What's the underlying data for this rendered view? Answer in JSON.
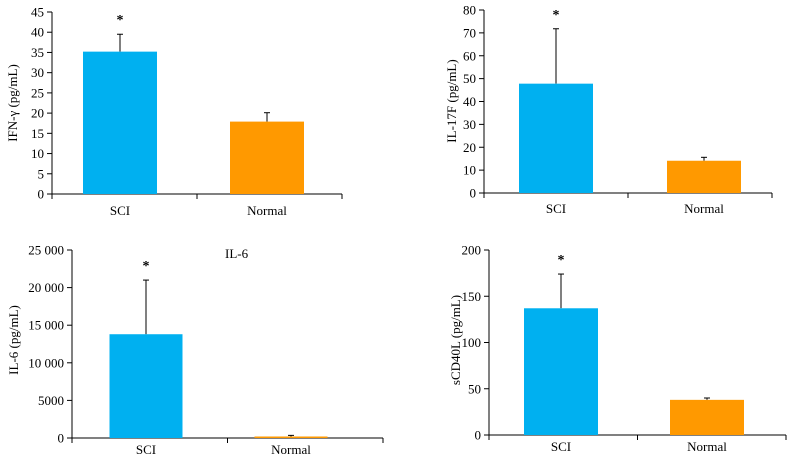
{
  "colors": {
    "sci": "#00b0f0",
    "normal": "#ff9900",
    "axis": "#000000"
  },
  "chart_data": [
    {
      "type": "bar",
      "title": "",
      "ylabel": "IFN-γ (pg/mL)",
      "categories": [
        "SCI",
        "Normal"
      ],
      "values": [
        35.2,
        17.9
      ],
      "errors": [
        4.3,
        2.2
      ],
      "annotations": [
        "*",
        ""
      ],
      "ylim": [
        0,
        45
      ],
      "ticks": [
        0,
        5,
        10,
        15,
        20,
        25,
        30,
        35,
        40,
        45
      ],
      "tick_labels": [
        "0",
        "5",
        "10",
        "15",
        "20",
        "25",
        "30",
        "35",
        "40",
        "45"
      ],
      "grid": false,
      "legend": "none"
    },
    {
      "type": "bar",
      "title": "",
      "ylabel": "IL-17F (pg/mL)",
      "categories": [
        "SCI",
        "Normal"
      ],
      "values": [
        47.8,
        14.1
      ],
      "errors": [
        24,
        1.5
      ],
      "annotations": [
        "*",
        ""
      ],
      "ylim": [
        0,
        80
      ],
      "ticks": [
        0,
        10,
        20,
        30,
        40,
        50,
        60,
        70,
        80
      ],
      "tick_labels": [
        "0",
        "10",
        "20",
        "30",
        "40",
        "50",
        "60",
        "70",
        "80"
      ],
      "grid": false,
      "legend": "none"
    },
    {
      "type": "bar",
      "title": "IL-6",
      "ylabel": "IL-6 (pg/mL)",
      "categories": [
        "SCI",
        "Normal"
      ],
      "values": [
        13800,
        200
      ],
      "errors": [
        7200,
        150
      ],
      "annotations": [
        "*",
        ""
      ],
      "ylim": [
        0,
        25000
      ],
      "ticks": [
        0,
        5000,
        10000,
        15000,
        20000,
        25000
      ],
      "tick_labels": [
        "0",
        "5000",
        "10 000",
        "15 000",
        "20 000",
        "25 000"
      ],
      "grid": false,
      "legend": "none"
    },
    {
      "type": "bar",
      "title": "",
      "ylabel": "sCD40L (pg/mL)",
      "categories": [
        "SCI",
        "Normal"
      ],
      "values": [
        137,
        38
      ],
      "errors": [
        37,
        2
      ],
      "annotations": [
        "*",
        ""
      ],
      "ylim": [
        0,
        200
      ],
      "ticks": [
        0,
        50,
        100,
        150,
        200
      ],
      "tick_labels": [
        "0",
        "50",
        "100",
        "150",
        "200"
      ],
      "grid": false,
      "legend": "none"
    }
  ]
}
